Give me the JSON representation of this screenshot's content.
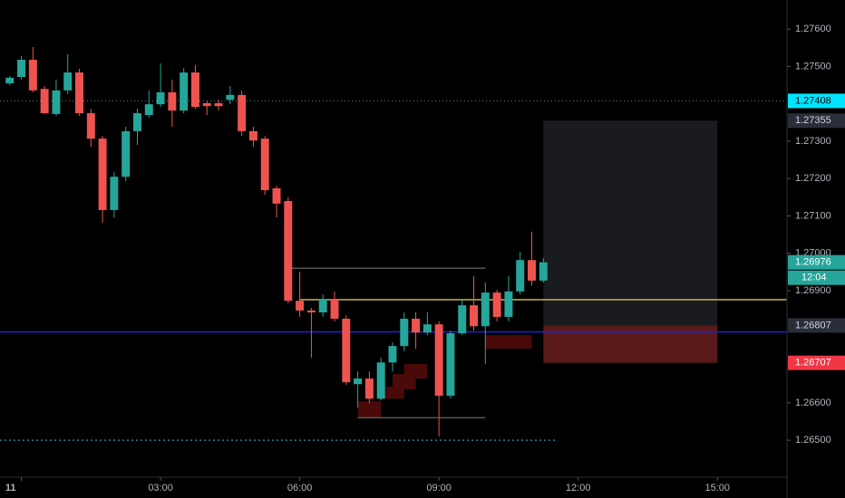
{
  "chart_data": {
    "type": "candlestick",
    "x": [
      -0.25,
      0,
      0.25,
      0.5,
      0.75,
      1,
      1.25,
      1.5,
      1.75,
      2,
      2.25,
      2.5,
      2.75,
      3,
      3.25,
      3.5,
      3.75,
      4,
      4.25,
      4.5,
      4.75,
      5,
      5.25,
      5.5,
      5.75,
      6,
      6.25,
      6.5,
      6.75,
      7,
      7.25,
      7.5,
      7.75,
      8,
      8.25,
      8.5,
      8.75,
      9,
      9.25,
      9.5,
      9.75,
      10,
      10.25,
      10.5,
      10.75,
      11,
      11.25
    ],
    "series": [
      {
        "up_color": "#26a69a",
        "down_color": "#ef5350",
        "open": [
          1.27455,
          1.27472,
          1.27518,
          1.2744,
          1.27373,
          1.27436,
          1.27484,
          1.27375,
          1.27307,
          1.27116,
          1.27205,
          1.27327,
          1.2737,
          1.27399,
          1.27431,
          1.27382,
          1.27484,
          1.27402,
          1.27402,
          1.27411,
          1.27424,
          1.27327,
          1.27307,
          1.27174,
          1.2714,
          1.26873,
          1.26847,
          1.26842,
          1.26878,
          1.26825,
          1.2665,
          1.26665,
          1.26611,
          1.26708,
          1.26752,
          1.26825,
          1.26788,
          1.2681,
          1.26619,
          1.26786,
          1.26861,
          1.26805,
          1.26895,
          1.2683,
          1.26898,
          1.26982,
          1.26927
        ],
        "high": [
          1.27474,
          1.27528,
          1.27552,
          1.27448,
          1.27465,
          1.27533,
          1.27494,
          1.27387,
          1.27314,
          1.27217,
          1.27339,
          1.27387,
          1.27436,
          1.27508,
          1.27465,
          1.27496,
          1.27504,
          1.27407,
          1.27411,
          1.27448,
          1.27436,
          1.27339,
          1.27314,
          1.27181,
          1.2715,
          1.26951,
          1.26854,
          1.2689,
          1.26898,
          1.26834,
          1.26684,
          1.26684,
          1.26721,
          1.26762,
          1.26842,
          1.26842,
          1.26842,
          1.26818,
          1.26793,
          1.26878,
          1.26939,
          1.26922,
          1.26902,
          1.26939,
          1.27004,
          1.27058,
          1.26987
        ],
        "low": [
          1.2745,
          1.27465,
          1.27431,
          1.27373,
          1.27368,
          1.27426,
          1.27368,
          1.27285,
          1.27082,
          1.27096,
          1.27193,
          1.2729,
          1.27363,
          1.27392,
          1.27339,
          1.27375,
          1.27387,
          1.2737,
          1.27382,
          1.27399,
          1.27314,
          1.27285,
          1.27157,
          1.27096,
          1.26866,
          1.2683,
          1.26721,
          1.2683,
          1.26818,
          1.26648,
          1.26587,
          1.26599,
          1.26607,
          1.26684,
          1.26738,
          1.26745,
          1.26781,
          1.2651,
          1.26611,
          1.26781,
          1.26793,
          1.26704,
          1.26818,
          1.26818,
          1.2689,
          1.26914,
          1.26922
        ],
        "close": [
          1.2747,
          1.27518,
          1.27436,
          1.27375,
          1.27436,
          1.27484,
          1.27375,
          1.27307,
          1.27116,
          1.27205,
          1.27327,
          1.27375,
          1.27399,
          1.27431,
          1.27382,
          1.27484,
          1.27392,
          1.27394,
          1.27394,
          1.27424,
          1.27327,
          1.27302,
          1.27169,
          1.27133,
          1.26873,
          1.26847,
          1.26842,
          1.26878,
          1.26825,
          1.26655,
          1.26665,
          1.26611,
          1.26708,
          1.26752,
          1.26825,
          1.26788,
          1.2681,
          1.26619,
          1.26786,
          1.26861,
          1.26805,
          1.26895,
          1.2683,
          1.26898,
          1.26982,
          1.26927,
          1.26976
        ]
      }
    ],
    "xlim": [
      -0.46,
      16.5
    ],
    "xticks": [
      {
        "value": 0,
        "label": "11"
      },
      {
        "value": 3,
        "label": "03:00"
      },
      {
        "value": 6,
        "label": "06:00"
      },
      {
        "value": 9,
        "label": "09:00"
      },
      {
        "value": 12,
        "label": "12:00"
      },
      {
        "value": 15,
        "label": "15:00"
      }
    ],
    "ylim": [
      1.26401,
      1.27678
    ],
    "yticks": [
      {
        "value": 1.276,
        "label": "1.27600"
      },
      {
        "value": 1.275,
        "label": "1.27500"
      },
      {
        "value": 1.273,
        "label": "1.27300"
      },
      {
        "value": 1.272,
        "label": "1.27200"
      },
      {
        "value": 1.271,
        "label": "1.27100"
      },
      {
        "value": 1.27,
        "label": "1.27000"
      },
      {
        "value": 1.269,
        "label": "1.26900"
      },
      {
        "value": 1.266,
        "label": "1.26600"
      },
      {
        "value": 1.265,
        "label": "1.26500"
      }
    ],
    "price_labels": [
      {
        "value": 1.27408,
        "label": "1.27408",
        "color": "#00e5ff",
        "text_color": "#000000"
      },
      {
        "value": 1.27355,
        "label": "1.27355",
        "color": "#2a2e39",
        "text_color": "#d1d4dc"
      },
      {
        "value": 1.26976,
        "label": "1.26976",
        "color": "#26a69a",
        "text_color": "#ffffff"
      },
      {
        "value": 1.26807,
        "label": "1.26807",
        "color": "#2a2e39",
        "text_color": "#d1d4dc"
      },
      {
        "value": 1.26707,
        "label": "1.26707",
        "color": "#f23645",
        "text_color": "#ffffff"
      }
    ],
    "countdown": "12:04",
    "lines": [
      {
        "value": 1.27408,
        "from": -0.46,
        "to": 16.5,
        "color": "#4f8f88",
        "dash": "1,3"
      },
      {
        "value": 1.265,
        "from": -0.46,
        "to": 11.5,
        "color": "#26c6da",
        "dash": "2,3"
      },
      {
        "value": 1.2679,
        "from": -0.46,
        "to": 16.5,
        "color": "#1e22d6",
        "dash": "none"
      },
      {
        "value": 1.26876,
        "from": 6,
        "to": 16.5,
        "color": "#c9b44a",
        "dash": "none"
      },
      {
        "value": 1.2696,
        "from": 5.75,
        "to": 10,
        "color": "#555555",
        "dash": "none"
      },
      {
        "value": 1.2656,
        "from": 7.25,
        "to": 10,
        "color": "#555555",
        "dash": "none"
      }
    ],
    "zones": [
      {
        "x": [
          7.25,
          7.75
        ],
        "y": [
          1.26558,
          1.26604
        ],
        "color": "#4a0a0a"
      },
      {
        "x": [
          7.75,
          8.25
        ],
        "y": [
          1.26611,
          1.26643
        ],
        "color": "#4a0a0a"
      },
      {
        "x": [
          8,
          8.5
        ],
        "y": [
          1.26636,
          1.26677
        ],
        "color": "#4a0a0a"
      },
      {
        "x": [
          8.25,
          8.75
        ],
        "y": [
          1.26665,
          1.26704
        ],
        "color": "#4a0a0a"
      },
      {
        "x": [
          10,
          11
        ],
        "y": [
          1.26745,
          1.26781
        ],
        "color": "#4a0a0a"
      },
      {
        "x": [
          11.25,
          15
        ],
        "y": [
          1.26807,
          1.27355
        ],
        "color": "#1a1b1e"
      },
      {
        "x": [
          11.25,
          15
        ],
        "y": [
          1.26707,
          1.26807
        ],
        "color": "#5a1a1a"
      }
    ]
  }
}
